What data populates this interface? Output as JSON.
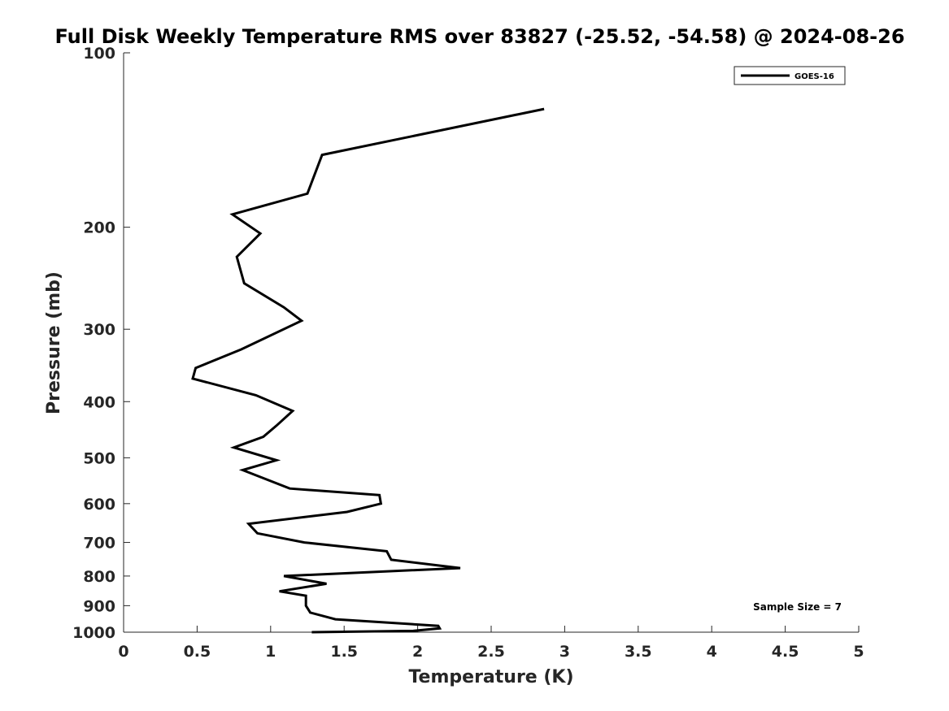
{
  "chart_data": {
    "type": "line",
    "title": "Full Disk Weekly Temperature RMS over 83827 (-25.52, -54.58) @ 2024-08-26",
    "xlabel": "Temperature (K)",
    "ylabel": "Pressure (mb)",
    "xlim": [
      0,
      5
    ],
    "ylim": [
      100,
      1000
    ],
    "y_scale": "log",
    "y_reversed": true,
    "x_ticks": [
      0,
      0.5,
      1,
      1.5,
      2,
      2.5,
      3,
      3.5,
      4,
      4.5,
      5
    ],
    "x_tick_labels": [
      "0",
      "0.5",
      "1",
      "1.5",
      "2",
      "2.5",
      "3",
      "3.5",
      "4",
      "4.5",
      "5"
    ],
    "y_ticks": [
      100,
      200,
      300,
      400,
      500,
      600,
      700,
      800,
      900,
      1000
    ],
    "y_tick_labels": [
      "100",
      "200",
      "300",
      "400",
      "500",
      "600",
      "700",
      "800",
      "900",
      "1000"
    ],
    "grid": false,
    "legend_position": "top-right",
    "series": [
      {
        "name": "GOES-16",
        "color": "#000000",
        "points": [
          [
            2.86,
            125
          ],
          [
            1.35,
            150
          ],
          [
            1.25,
            175
          ],
          [
            0.74,
            190
          ],
          [
            0.93,
            205
          ],
          [
            0.77,
            225
          ],
          [
            0.82,
            250
          ],
          [
            1.09,
            275
          ],
          [
            1.21,
            290
          ],
          [
            0.8,
            325
          ],
          [
            0.49,
            350
          ],
          [
            0.47,
            365
          ],
          [
            0.9,
            390
          ],
          [
            1.15,
            415
          ],
          [
            1.04,
            440
          ],
          [
            0.95,
            460
          ],
          [
            0.75,
            480
          ],
          [
            1.04,
            505
          ],
          [
            0.81,
            525
          ],
          [
            1.13,
            565
          ],
          [
            1.74,
            580
          ],
          [
            1.75,
            600
          ],
          [
            1.52,
            620
          ],
          [
            0.85,
            650
          ],
          [
            0.91,
            675
          ],
          [
            1.23,
            700
          ],
          [
            1.79,
            725
          ],
          [
            1.82,
            750
          ],
          [
            2.29,
            775
          ],
          [
            1.09,
            800
          ],
          [
            1.38,
            825
          ],
          [
            1.06,
            850
          ],
          [
            1.24,
            865
          ],
          [
            1.24,
            900
          ],
          [
            1.27,
            925
          ],
          [
            1.44,
            950
          ],
          [
            2.14,
            975
          ],
          [
            2.15,
            985
          ],
          [
            1.97,
            995
          ],
          [
            1.28,
            1000
          ]
        ]
      }
    ],
    "annotations": [
      "Sample Size = 7"
    ]
  }
}
